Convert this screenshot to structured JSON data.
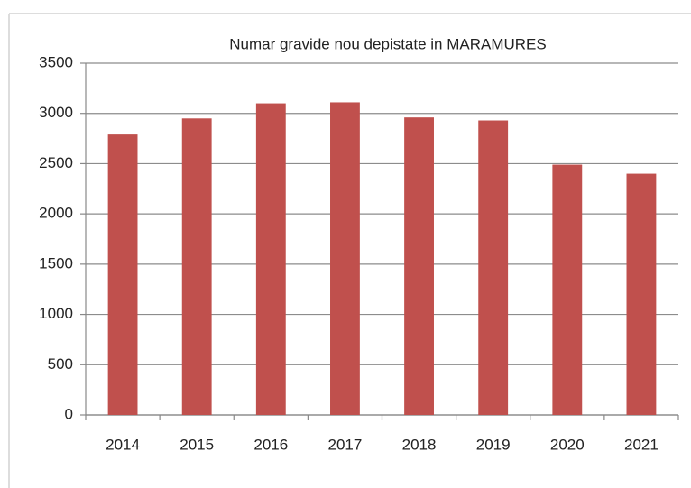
{
  "chart_data": {
    "type": "bar",
    "title": "Numar gravide nou depistate in MARAMURES",
    "categories": [
      "2014",
      "2015",
      "2016",
      "2017",
      "2018",
      "2019",
      "2020",
      "2021"
    ],
    "values": [
      2790,
      2950,
      3100,
      3110,
      2960,
      2930,
      2490,
      2400
    ],
    "color": "#c0504d",
    "ylim": [
      0,
      3500
    ],
    "yticks": [
      0,
      500,
      1000,
      1500,
      2000,
      2500,
      3000,
      3500
    ],
    "grid": true
  }
}
